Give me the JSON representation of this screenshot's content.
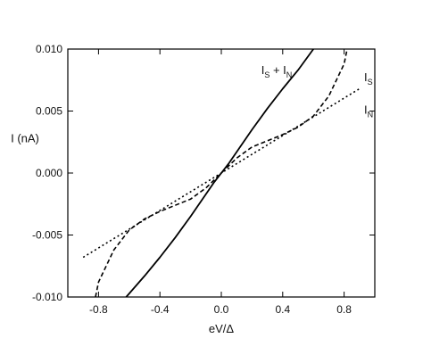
{
  "chart_data": {
    "type": "line",
    "xlabel": "eV/Δ",
    "ylabel": "I (nA)",
    "xlim": [
      -1.0,
      1.0
    ],
    "ylim": [
      -0.01,
      0.01
    ],
    "x_ticks": [
      -0.8,
      -0.4,
      0.0,
      0.4,
      0.8
    ],
    "x_tick_labels": [
      "-0.8",
      "-0.4",
      "0.0",
      "0.4",
      "0.8"
    ],
    "y_ticks": [
      -0.01,
      -0.005,
      0.0,
      0.005,
      0.01
    ],
    "y_tick_labels": [
      "-0.010",
      "-0.005",
      "0.000",
      "0.005",
      "0.010"
    ],
    "grid": false,
    "series": [
      {
        "name": "IS + IN",
        "label_parts": [
          [
            "I",
            ""
          ],
          [
            "S",
            "sub"
          ],
          [
            " + I",
            ""
          ],
          [
            "N",
            "sub"
          ]
        ],
        "style": "solid",
        "color": "#000000",
        "points": [
          [
            -0.62,
            -0.01
          ],
          [
            -0.5,
            -0.0083
          ],
          [
            -0.4,
            -0.0068
          ],
          [
            -0.3,
            -0.0052
          ],
          [
            -0.2,
            -0.0035
          ],
          [
            -0.1,
            -0.0017
          ],
          [
            -0.05,
            -0.0008
          ],
          [
            0.0,
            0.0
          ],
          [
            0.05,
            0.0008
          ],
          [
            0.1,
            0.0017
          ],
          [
            0.2,
            0.0035
          ],
          [
            0.3,
            0.0052
          ],
          [
            0.4,
            0.0068
          ],
          [
            0.5,
            0.0083
          ],
          [
            0.6,
            0.01
          ]
        ]
      },
      {
        "name": "IS",
        "label_parts": [
          [
            "I",
            ""
          ],
          [
            "S",
            "sub"
          ]
        ],
        "style": "dashed",
        "color": "#000000",
        "points": [
          [
            -0.82,
            -0.01
          ],
          [
            -0.8,
            -0.0088
          ],
          [
            -0.7,
            -0.0062
          ],
          [
            -0.6,
            -0.0046
          ],
          [
            -0.5,
            -0.0037
          ],
          [
            -0.4,
            -0.0031
          ],
          [
            -0.2,
            -0.0021
          ],
          [
            -0.1,
            -0.0012
          ],
          [
            0.0,
            0.0
          ],
          [
            0.1,
            0.0012
          ],
          [
            0.2,
            0.0021
          ],
          [
            0.4,
            0.0031
          ],
          [
            0.5,
            0.0037
          ],
          [
            0.6,
            0.0046
          ],
          [
            0.7,
            0.0062
          ],
          [
            0.8,
            0.0088
          ],
          [
            0.82,
            0.01
          ]
        ]
      },
      {
        "name": "IN",
        "label_parts": [
          [
            "I",
            ""
          ],
          [
            "N",
            "sub"
          ]
        ],
        "style": "dotted",
        "color": "#000000",
        "points": [
          [
            -0.9,
            -0.0068
          ],
          [
            0.0,
            0.0
          ],
          [
            0.9,
            0.0068
          ]
        ]
      }
    ]
  }
}
